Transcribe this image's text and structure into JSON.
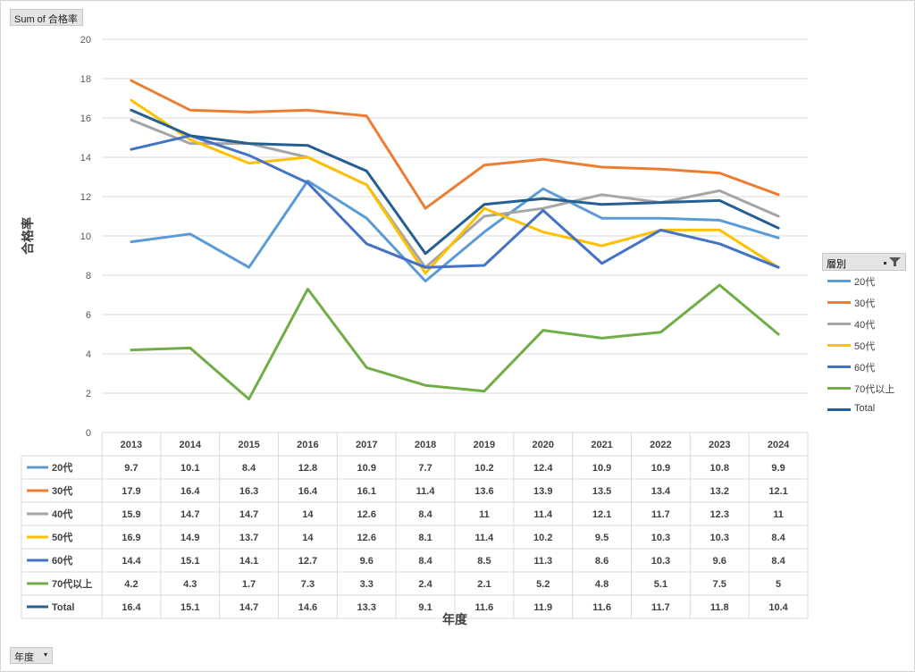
{
  "value_field": {
    "label": "Sum of 合格率"
  },
  "axis_field": {
    "label": "年度"
  },
  "legend": {
    "title": "層別"
  },
  "chart_data": {
    "type": "line",
    "ylabel": "合格率",
    "xlabel": "年度",
    "ylim": [
      0,
      20
    ],
    "yticks": [
      0,
      2,
      4,
      6,
      8,
      10,
      12,
      14,
      16,
      18,
      20
    ],
    "grid": true,
    "legend_position": "right",
    "categories": [
      "2013",
      "2014",
      "2015",
      "2016",
      "2017",
      "2018",
      "2019",
      "2020",
      "2021",
      "2022",
      "2023",
      "2024"
    ],
    "series": [
      {
        "name": "20代",
        "color": "#5b9bd5",
        "values": [
          "9.7",
          "10.1",
          "8.4",
          "12.8",
          "10.9",
          "7.7",
          "10.2",
          "12.4",
          "10.9",
          "10.9",
          "10.8",
          "9.9"
        ]
      },
      {
        "name": "30代",
        "color": "#ed7d31",
        "values": [
          "17.9",
          "16.4",
          "16.3",
          "16.4",
          "16.1",
          "11.4",
          "13.6",
          "13.9",
          "13.5",
          "13.4",
          "13.2",
          "12.1"
        ]
      },
      {
        "name": "40代",
        "color": "#a5a5a5",
        "values": [
          "15.9",
          "14.7",
          "14.7",
          "14",
          "12.6",
          "8.4",
          "11",
          "11.4",
          "12.1",
          "11.7",
          "12.3",
          "11"
        ]
      },
      {
        "name": "50代",
        "color": "#ffc000",
        "values": [
          "16.9",
          "14.9",
          "13.7",
          "14",
          "12.6",
          "8.1",
          "11.4",
          "10.2",
          "9.5",
          "10.3",
          "10.3",
          "8.4"
        ]
      },
      {
        "name": "60代",
        "color": "#4472c4",
        "values": [
          "14.4",
          "15.1",
          "14.1",
          "12.7",
          "9.6",
          "8.4",
          "8.5",
          "11.3",
          "8.6",
          "10.3",
          "9.6",
          "8.4"
        ]
      },
      {
        "name": "70代以上",
        "color": "#70ad47",
        "values": [
          "4.2",
          "4.3",
          "1.7",
          "7.3",
          "3.3",
          "2.4",
          "2.1",
          "5.2",
          "4.8",
          "5.1",
          "7.5",
          "5"
        ]
      },
      {
        "name": "Total",
        "color": "#255e91",
        "values": [
          "16.4",
          "15.1",
          "14.7",
          "14.6",
          "13.3",
          "9.1",
          "11.6",
          "11.9",
          "11.6",
          "11.7",
          "11.8",
          "10.4"
        ]
      }
    ]
  }
}
